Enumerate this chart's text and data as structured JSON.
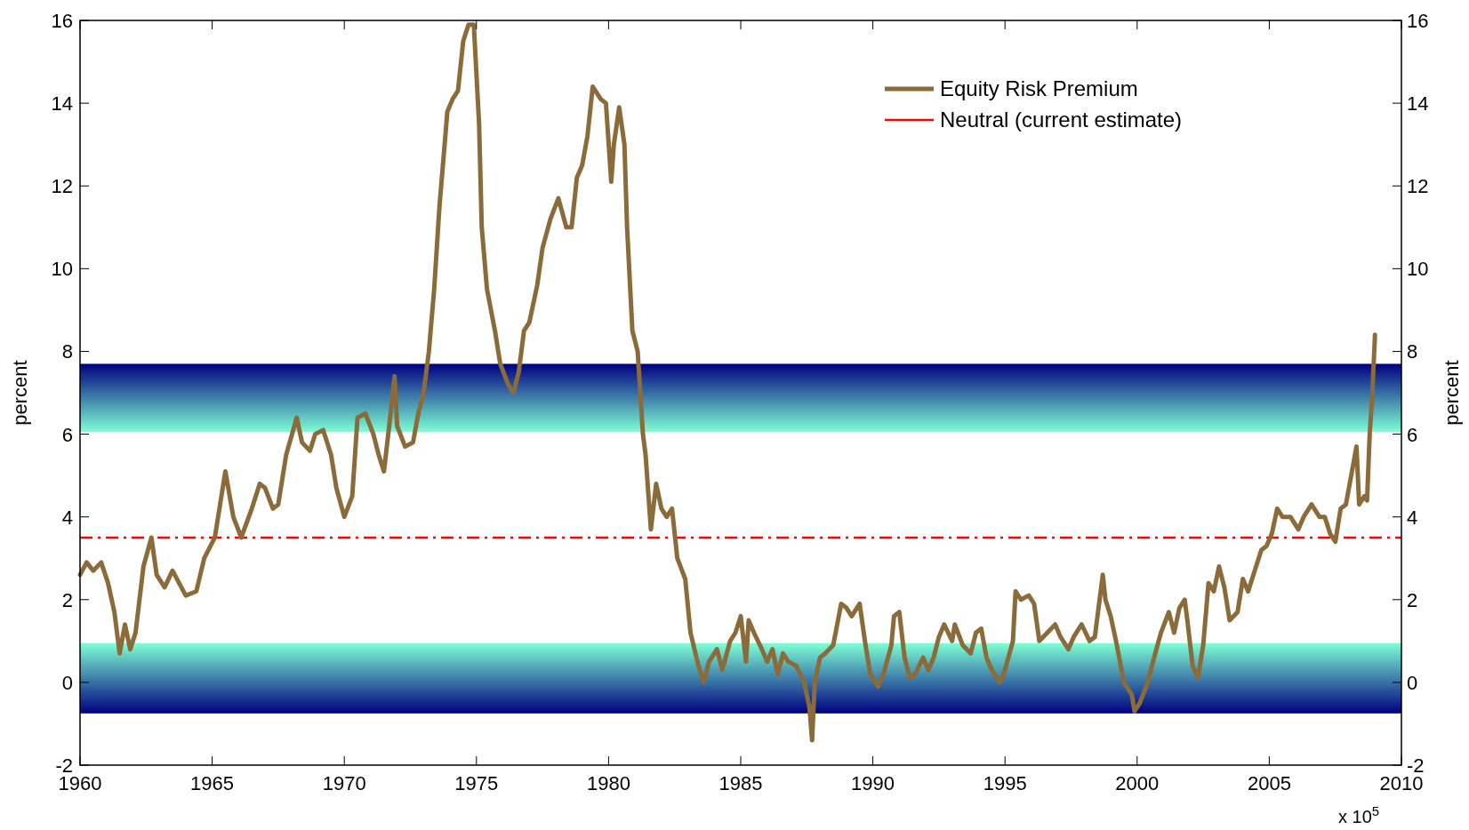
{
  "chart_data": {
    "type": "line",
    "ylabel": "percent",
    "y2label": "percent",
    "xlim": [
      1960,
      2010
    ],
    "xticks": [
      1960,
      1965,
      1970,
      1975,
      1980,
      1985,
      1990,
      1995,
      2000,
      2005,
      2010
    ],
    "ylim": [
      -2,
      16
    ],
    "yticks": [
      -2,
      0,
      2,
      4,
      6,
      8,
      10,
      12,
      14,
      16
    ],
    "y2lim": [
      -2,
      16
    ],
    "y2ticks": [
      -2,
      0,
      2,
      4,
      6,
      8,
      10,
      12,
      14,
      16
    ],
    "legend": "top right",
    "line_style": "solid",
    "marker": "none",
    "annotations": [
      "x 10$^{5}$"
    ],
    "ref_lines": [
      {
        "axis": "y",
        "value": 3.5,
        "label": "Neutral (current estimate)",
        "color": "#ff0000",
        "line_style": "dashdot"
      }
    ],
    "bands": [
      {
        "axis": "y",
        "from": 6.05,
        "to": 7.7,
        "color": "#000080"
      },
      {
        "axis": "y",
        "from": -0.75,
        "to": 0.95,
        "color": "#000080"
      }
    ],
    "series": [
      {
        "name": "Equity Risk Premium",
        "color": "#8b6b3a",
        "x": [
          1960,
          1960.25,
          1960.5,
          1960.8,
          1961.06,
          1961.3,
          1961.5,
          1961.7,
          1961.9,
          1962.1,
          1962.4,
          1962.7,
          1962.9,
          1963.2,
          1963.5,
          1964,
          1964.4,
          1964.7,
          1965.1,
          1965.3,
          1965.5,
          1965.8,
          1966.1,
          1966.5,
          1966.8,
          1967,
          1967.3,
          1967.5,
          1967.8,
          1968.2,
          1968.4,
          1968.7,
          1968.9,
          1969.2,
          1969.5,
          1969.7,
          1970,
          1970.3,
          1970.5,
          1970.8,
          1971.1,
          1971.3,
          1971.5,
          1971.7,
          1971.9,
          1972,
          1972.3,
          1972.6,
          1972.8,
          1973,
          1973.2,
          1973.4,
          1973.5,
          1973.6,
          1973.9,
          1974.1,
          1974.3,
          1974.5,
          1974.7,
          1974.9,
          1975.1,
          1975.2,
          1975.4,
          1975.7,
          1975.9,
          1976.2,
          1976.4,
          1976.6,
          1976.8,
          1977,
          1977.3,
          1977.5,
          1977.8,
          1978.1,
          1978.4,
          1978.6,
          1978.8,
          1979,
          1979.2,
          1979.4,
          1979.7,
          1979.9,
          1980.1,
          1980.2,
          1980.4,
          1980.6,
          1980.7,
          1980.9,
          1981.1,
          1981.3,
          1981.4,
          1981.6,
          1981.8,
          1982,
          1982.2,
          1982.4,
          1982.6,
          1982.9,
          1983.1,
          1983.4,
          1983.6,
          1983.8,
          1984.1,
          1984.3,
          1984.6,
          1984.8,
          1985,
          1985.2,
          1985.3,
          1985.5,
          1985.8,
          1986,
          1986.2,
          1986.4,
          1986.6,
          1986.8,
          1987.1,
          1987.4,
          1987.6,
          1987.7,
          1987.8,
          1988,
          1988.2,
          1988.5,
          1988.8,
          1989,
          1989.2,
          1989.5,
          1989.7,
          1989.9,
          1990.2,
          1990.4,
          1990.7,
          1990.8,
          1991,
          1991.2,
          1991.4,
          1991.6,
          1991.9,
          1992.1,
          1992.3,
          1992.5,
          1992.7,
          1993,
          1993.1,
          1993.4,
          1993.7,
          1993.9,
          1994.1,
          1994.3,
          1994.5,
          1994.8,
          1995,
          1995.3,
          1995.4,
          1995.6,
          1995.9,
          1996.1,
          1996.3,
          1996.6,
          1996.9,
          1997.1,
          1997.4,
          1997.6,
          1997.9,
          1998.2,
          1998.4,
          1998.7,
          1998.8,
          1999,
          1999.2,
          1999.5,
          1999.8,
          1999.9,
          2000.1,
          2000.4,
          2000.6,
          2000.9,
          2001.2,
          2001.4,
          2001.6,
          2001.8,
          2001.9,
          2002.1,
          2002.3,
          2002.5,
          2002.7,
          2002.9,
          2003.1,
          2003.3,
          2003.5,
          2003.8,
          2004,
          2004.2,
          2004.5,
          2004.7,
          2004.9,
          2005.1,
          2005.3,
          2005.5,
          2005.8,
          2006.1,
          2006.3,
          2006.6,
          2006.9,
          2007.1,
          2007.3,
          2007.5,
          2007.7,
          2007.9,
          2008.1,
          2008.3,
          2008.4,
          2008.6,
          2008.7,
          2008.8,
          2008.9,
          2009
        ],
        "values": [
          2.6,
          2.9,
          2.7,
          2.9,
          2.4,
          1.7,
          0.7,
          1.4,
          0.8,
          1.2,
          2.8,
          3.5,
          2.6,
          2.3,
          2.7,
          2.1,
          2.2,
          3,
          3.5,
          4.3,
          5.1,
          4,
          3.5,
          4.2,
          4.8,
          4.7,
          4.2,
          4.3,
          5.5,
          6.4,
          5.8,
          5.6,
          6,
          6.1,
          5.5,
          4.7,
          4,
          4.5,
          6.4,
          6.5,
          6,
          5.5,
          5.1,
          6.2,
          7.4,
          6.2,
          5.7,
          5.8,
          6.5,
          7,
          8,
          9.5,
          10.5,
          11.5,
          13.8,
          14.1,
          14.3,
          15.5,
          15.9,
          15.9,
          13.5,
          11,
          9.5,
          8.5,
          7.7,
          7.2,
          7,
          7.5,
          8.5,
          8.7,
          9.6,
          10.5,
          11.2,
          11.7,
          11,
          11,
          12.2,
          12.5,
          13.2,
          14.4,
          14.1,
          14,
          12.1,
          13,
          13.9,
          13,
          11,
          8.5,
          8,
          6,
          5.5,
          3.7,
          4.8,
          4.2,
          4,
          4.2,
          3,
          2.5,
          1.2,
          0.4,
          0,
          0.5,
          0.8,
          0.3,
          1,
          1.2,
          1.6,
          0.5,
          1.5,
          1.2,
          0.8,
          0.5,
          0.8,
          0.2,
          0.7,
          0.5,
          0.4,
          0,
          -0.6,
          -1.4,
          0,
          0.6,
          0.7,
          0.9,
          1.9,
          1.8,
          1.6,
          1.9,
          1,
          0.2,
          -0.1,
          0.2,
          0.9,
          1.6,
          1.7,
          0.6,
          0.1,
          0.2,
          0.6,
          0.3,
          0.6,
          1.1,
          1.4,
          1,
          1.4,
          0.9,
          0.7,
          1.2,
          1.3,
          0.6,
          0.3,
          0,
          0.3,
          1,
          2.2,
          2,
          2.1,
          1.9,
          1,
          1.2,
          1.4,
          1.1,
          0.8,
          1.1,
          1.4,
          1,
          1.1,
          2.6,
          2,
          1.6,
          1,
          0,
          -0.3,
          -0.7,
          -0.5,
          0,
          0.5,
          1.2,
          1.7,
          1.2,
          1.8,
          2,
          1.5,
          0.4,
          0.1,
          0.9,
          2.4,
          2.2,
          2.8,
          2.3,
          1.5,
          1.7,
          2.5,
          2.2,
          2.8,
          3.2,
          3.3,
          3.6,
          4.2,
          4,
          4,
          3.7,
          4,
          4.3,
          4,
          4,
          3.6,
          3.4,
          4.2,
          4.3,
          5,
          5.7,
          4.3,
          4.5,
          4.4,
          6,
          7,
          8.4
        ]
      }
    ]
  }
}
